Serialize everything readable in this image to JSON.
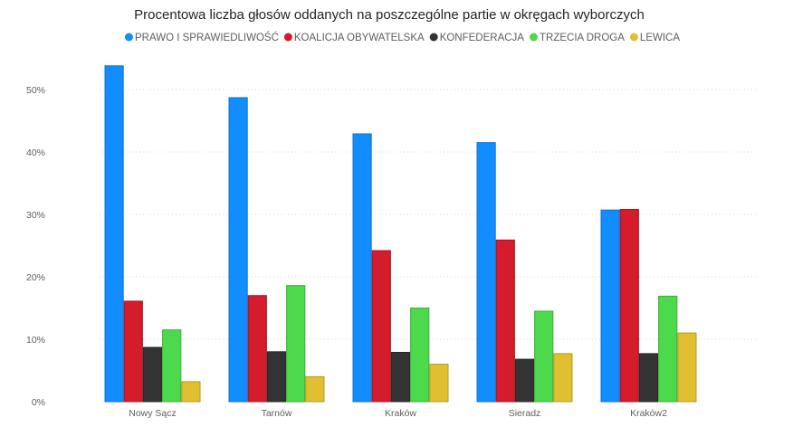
{
  "chart_data": {
    "type": "bar",
    "title": "Procentowa liczba głosów oddanych na poszczególne partie w okręgach wyborczych",
    "xlabel": "",
    "ylabel": "",
    "categories": [
      "Nowy Sącz",
      "Tarnów",
      "Kraków",
      "Sieradz",
      "Kraków2"
    ],
    "series": [
      {
        "name": "PRAWO I SPRAWIEDLIWOŚĆ",
        "color": "#118dff",
        "values": [
          53.8,
          48.7,
          42.9,
          41.5,
          30.7
        ]
      },
      {
        "name": "KOALICJA OBYWATELSKA",
        "color": "#d41c2c",
        "values": [
          16.1,
          17.0,
          24.2,
          25.9,
          30.8
        ]
      },
      {
        "name": "KONFEDERACJA",
        "color": "#333333",
        "values": [
          8.7,
          8.0,
          7.9,
          6.8,
          7.7
        ]
      },
      {
        "name": "TRZECIA DROGA",
        "color": "#4cd94c",
        "values": [
          11.5,
          18.6,
          15.0,
          14.5,
          16.9
        ]
      },
      {
        "name": "LEWICA",
        "color": "#e0c030",
        "values": [
          3.2,
          4.0,
          6.0,
          7.7,
          11.0
        ]
      }
    ],
    "yticks": [
      0,
      10,
      20,
      30,
      40,
      50
    ],
    "ytick_labels": [
      "0%",
      "10%",
      "20%",
      "30%",
      "40%",
      "50%"
    ],
    "ylim": [
      0,
      56
    ],
    "grid": true,
    "legend_position": "top-center"
  }
}
